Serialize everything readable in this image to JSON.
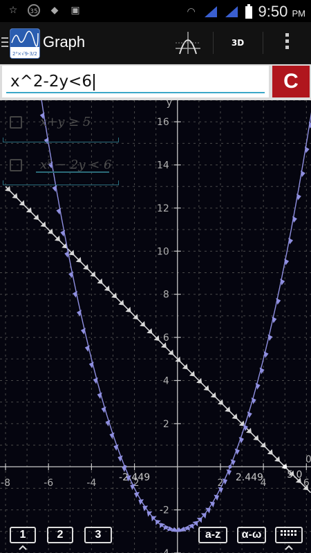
{
  "status_bar": {
    "notification_count": "35",
    "time": "9:50",
    "ampm": "PM"
  },
  "app_bar": {
    "title": "Graph",
    "btn_3d": "3D"
  },
  "input": {
    "value": "x^2-2y<6",
    "clear_label": "C"
  },
  "equations": [
    {
      "label": "x+y ≥ 5",
      "checked": false
    },
    {
      "label": "x² − 2y < 6",
      "checked": false
    }
  ],
  "keys": {
    "page1": "1",
    "page2": "2",
    "page3": "3",
    "latin": "a-z",
    "greek": "α-ω"
  },
  "chart_data": {
    "type": "line",
    "xlabel": "",
    "ylabel": "y",
    "xlim": [
      -8,
      6.2
    ],
    "ylim": [
      -4,
      17
    ],
    "x_ticks": [
      -8,
      -6,
      -4,
      -2,
      2,
      4,
      6
    ],
    "y_ticks": [
      -4,
      -2,
      2,
      4,
      6,
      8,
      10,
      12,
      14,
      16
    ],
    "grid": true,
    "series": [
      {
        "name": "",
        "expression": "x+y ≥ 5",
        "color": "#c8c8c8"
      },
      {
        "name": "",
        "expression": "x^2-2y<6",
        "color": "#8f8fe0"
      }
    ],
    "annotations": [
      "-2.449",
      "2.449",
      "5.0",
      "0"
    ],
    "axis_label_x_marker": "0",
    "colors": {
      "grid": "#4a4a4a",
      "axis": "#c8c8c8",
      "line": "#d8d8d8",
      "parabola": "#8f8fe0",
      "tick_label": "#b0b0b0"
    }
  }
}
